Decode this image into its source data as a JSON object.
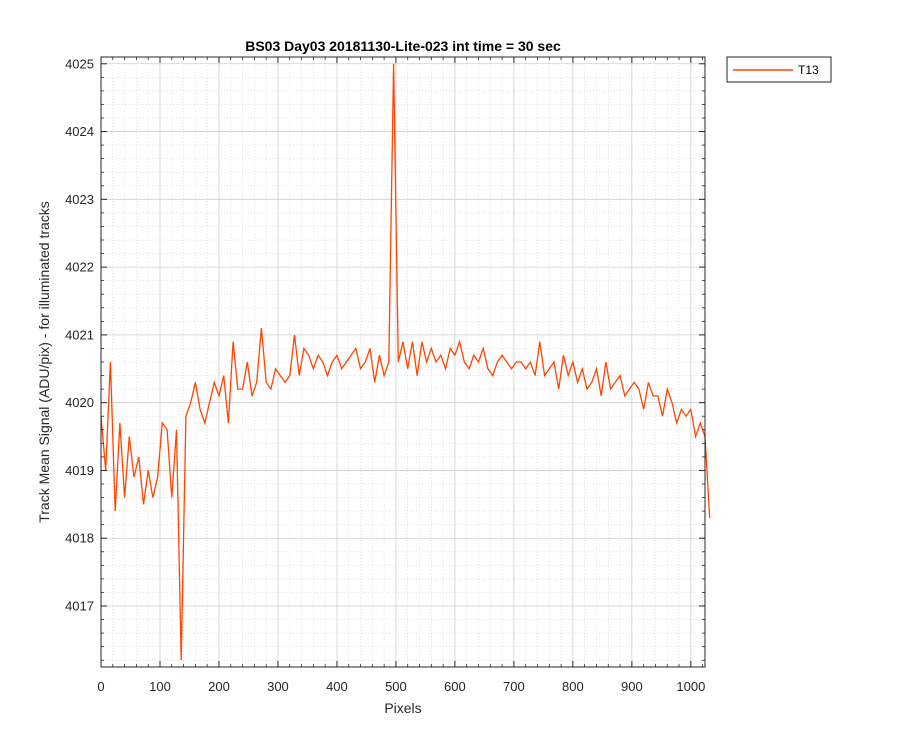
{
  "chart_data": {
    "type": "line",
    "title": "BS03 Day03 20181130-Lite-023 int time = 30 sec",
    "xlabel": "Pixels",
    "ylabel": "Track Mean Signal (ADU/pix) - for illuminated tracks",
    "xlim": [
      0,
      1024
    ],
    "ylim": [
      4016.1,
      4025.1
    ],
    "xticks": [
      0,
      100,
      200,
      300,
      400,
      500,
      600,
      700,
      800,
      900,
      1000
    ],
    "xtick_labels": [
      "0",
      "100",
      "200",
      "300",
      "400",
      "500",
      "600",
      "700",
      "800",
      "900",
      "1000"
    ],
    "yticks": [
      4017,
      4018,
      4019,
      4020,
      4021,
      4022,
      4023,
      4024,
      4025
    ],
    "ytick_labels": [
      "4017",
      "4018",
      "4019",
      "4020",
      "4021",
      "4022",
      "4023",
      "4024",
      "4025"
    ],
    "grid": true,
    "minor_grid": true,
    "legend_position": "outside-top-right",
    "series": [
      {
        "name": "T13",
        "color": "#FF4500",
        "sample_step": 8,
        "x_start": 0,
        "y": [
          4019.8,
          4019.0,
          4020.6,
          4018.4,
          4019.7,
          4018.6,
          4019.5,
          4018.9,
          4019.2,
          4018.5,
          4019.0,
          4018.6,
          4018.9,
          4019.7,
          4019.6,
          4018.6,
          4019.6,
          4016.2,
          4019.8,
          4020.0,
          4020.3,
          4019.9,
          4019.7,
          4020.0,
          4020.3,
          4020.1,
          4020.4,
          4019.7,
          4020.9,
          4020.2,
          4020.2,
          4020.6,
          4020.1,
          4020.3,
          4021.1,
          4020.3,
          4020.2,
          4020.5,
          4020.4,
          4020.3,
          4020.4,
          4021.0,
          4020.4,
          4020.8,
          4020.7,
          4020.5,
          4020.7,
          4020.6,
          4020.4,
          4020.6,
          4020.7,
          4020.5,
          4020.6,
          4020.7,
          4020.8,
          4020.5,
          4020.6,
          4020.8,
          4020.3,
          4020.7,
          4020.4,
          4020.6,
          4025.0,
          4020.6,
          4020.9,
          4020.5,
          4020.9,
          4020.4,
          4020.9,
          4020.6,
          4020.8,
          4020.6,
          4020.7,
          4020.5,
          4020.8,
          4020.7,
          4020.9,
          4020.6,
          4020.5,
          4020.7,
          4020.6,
          4020.8,
          4020.5,
          4020.4,
          4020.6,
          4020.7,
          4020.6,
          4020.5,
          4020.6,
          4020.6,
          4020.5,
          4020.6,
          4020.4,
          4020.9,
          4020.4,
          4020.5,
          4020.6,
          4020.2,
          4020.7,
          4020.4,
          4020.6,
          4020.3,
          4020.5,
          4020.2,
          4020.3,
          4020.5,
          4020.1,
          4020.6,
          4020.2,
          4020.3,
          4020.4,
          4020.1,
          4020.2,
          4020.3,
          4020.2,
          4019.9,
          4020.3,
          4020.1,
          4020.1,
          4019.8,
          4020.2,
          4020.0,
          4019.7,
          4019.9,
          4019.8,
          4019.9,
          4019.5,
          4019.7,
          4019.5,
          4018.3
        ]
      }
    ]
  }
}
